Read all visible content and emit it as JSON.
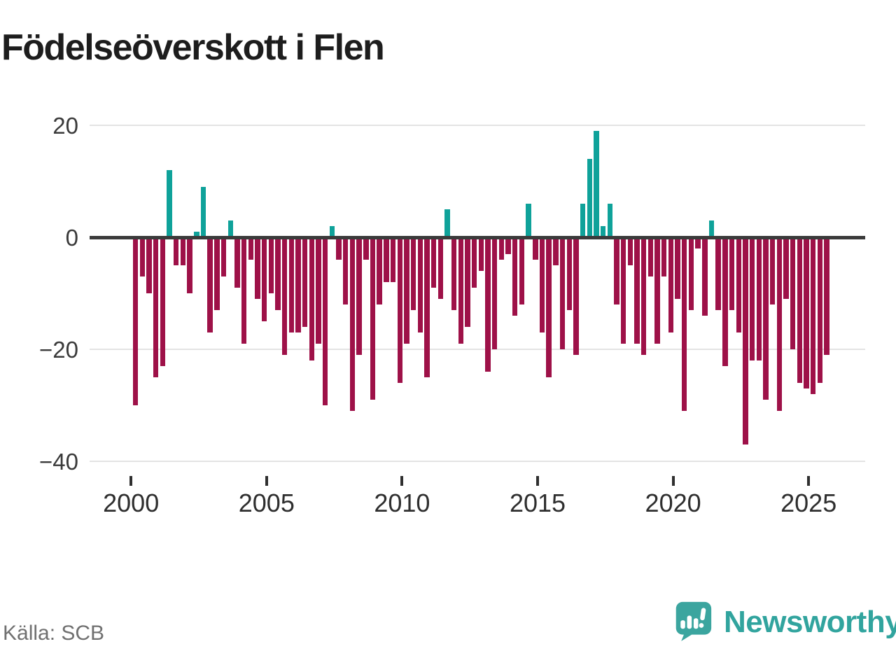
{
  "title": "Födelseöverskott i Flen",
  "footer": {
    "source_label": "Källa: SCB",
    "brand_name": "Newsworthy"
  },
  "colors": {
    "positive": "#0fa29a",
    "negative": "#9e1148",
    "zero_line": "#3b3b3b",
    "gridline": "#e3e3e3",
    "brand_teal": "#31a49e"
  },
  "chart_data": {
    "type": "bar",
    "title": "Födelseöverskott i Flen",
    "frequency": "quarterly",
    "x_start": "2000 Q1",
    "x_end": "2025 Q3",
    "ylim": [
      -40,
      20
    ],
    "grid": "horizontal",
    "yticks": [
      {
        "label": "20",
        "value": 20
      },
      {
        "label": "0",
        "value": 0
      },
      {
        "label": "−20",
        "value": -20
      },
      {
        "label": "−40",
        "value": -40
      }
    ],
    "xticks": [
      {
        "label": "2000",
        "value": 2000
      },
      {
        "label": "2005",
        "value": 2005
      },
      {
        "label": "2010",
        "value": 2010
      },
      {
        "label": "2015",
        "value": 2015
      },
      {
        "label": "2020",
        "value": 2020
      },
      {
        "label": "2025",
        "value": 2025
      }
    ],
    "values": [
      -30,
      -7,
      -10,
      -25,
      -23,
      12,
      -5,
      -5,
      -10,
      1,
      9,
      -17,
      -13,
      -7,
      3,
      -9,
      -19,
      -4,
      -11,
      -15,
      -10,
      -13,
      -21,
      -17,
      -17,
      -16,
      -22,
      -19,
      -30,
      2,
      -4,
      -12,
      -31,
      -21,
      -4,
      -29,
      -12,
      -8,
      -8,
      -26,
      -19,
      -13,
      -17,
      -25,
      -9,
      -11,
      5,
      -13,
      -19,
      -16,
      -9,
      -6,
      -24,
      -20,
      -4,
      -3,
      -14,
      -12,
      6,
      -4,
      -17,
      -25,
      -5,
      -20,
      -13,
      -21,
      6,
      14,
      19,
      2,
      6,
      -12,
      -19,
      -5,
      -19,
      -21,
      -7,
      -19,
      -7,
      -17,
      -11,
      -31,
      -13,
      -2,
      -14,
      3,
      -13,
      -23,
      -13,
      -17,
      -37,
      -22,
      -22,
      -29,
      -12,
      -31,
      -11,
      -20,
      -26,
      -27,
      -28,
      -26,
      -21
    ]
  }
}
